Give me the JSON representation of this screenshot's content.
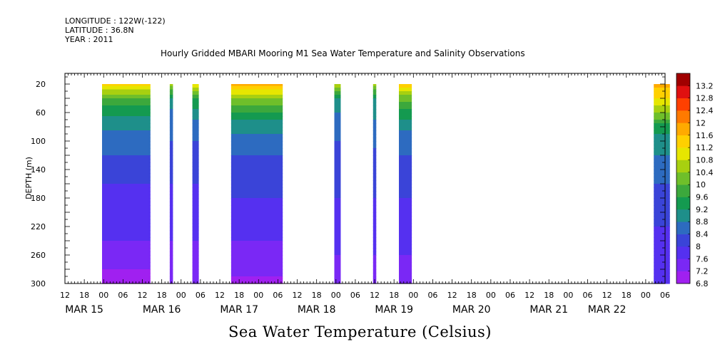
{
  "header": {
    "longitude": "LONGITUDE : 122W(-122)",
    "latitude": "LATITUDE : 36.8N",
    "year": "YEAR : 2011"
  },
  "chart_data": {
    "type": "heatmap",
    "title": "Hourly Gridded MBARI Mooring M1 Sea Water Temperature and Salinity Observations",
    "xlabel": "",
    "ylabel": "DEPTH (m)",
    "colorbar_label": "Sea Water Temperature (Celsius)",
    "xlim_hours": [
      -18,
      168
    ],
    "x_day_labels": [
      "MAR 15",
      "MAR 16",
      "MAR 17",
      "MAR 18",
      "MAR 19",
      "MAR 20",
      "MAR 21",
      "MAR 22"
    ],
    "x_day_label_hours": [
      -12,
      12,
      36,
      60,
      84,
      108,
      132,
      150
    ],
    "x_hour_ticks": [
      {
        "h": -18,
        "label": "12"
      },
      {
        "h": -12,
        "label": "18"
      },
      {
        "h": -6,
        "label": "00"
      },
      {
        "h": 0,
        "label": "06"
      },
      {
        "h": 6,
        "label": "12"
      },
      {
        "h": 12,
        "label": "18"
      },
      {
        "h": 18,
        "label": "00"
      },
      {
        "h": 24,
        "label": "06"
      },
      {
        "h": 30,
        "label": "12"
      },
      {
        "h": 36,
        "label": "18"
      },
      {
        "h": 42,
        "label": "00"
      },
      {
        "h": 48,
        "label": "06"
      },
      {
        "h": 54,
        "label": "12"
      },
      {
        "h": 60,
        "label": "18"
      },
      {
        "h": 66,
        "label": "00"
      },
      {
        "h": 72,
        "label": "06"
      },
      {
        "h": 78,
        "label": "12"
      },
      {
        "h": 84,
        "label": "18"
      },
      {
        "h": 90,
        "label": "00"
      },
      {
        "h": 96,
        "label": "06"
      },
      {
        "h": 102,
        "label": "12"
      },
      {
        "h": 108,
        "label": "18"
      },
      {
        "h": 114,
        "label": "00"
      },
      {
        "h": 120,
        "label": "06"
      },
      {
        "h": 126,
        "label": "12"
      },
      {
        "h": 132,
        "label": "18"
      },
      {
        "h": 138,
        "label": "00"
      },
      {
        "h": 144,
        "label": "06"
      },
      {
        "h": 150,
        "label": "12"
      },
      {
        "h": 156,
        "label": "18"
      },
      {
        "h": 162,
        "label": "00"
      },
      {
        "h": 168,
        "label": "06"
      }
    ],
    "y_ticks": [
      20,
      60,
      100,
      140,
      180,
      220,
      260,
      300
    ],
    "ylim": [
      0,
      300
    ],
    "colorbar_levels": [
      "6.8",
      "7.2",
      "7.6",
      "8",
      "8.4",
      "8.8",
      "9.2",
      "9.6",
      "10",
      "10.4",
      "10.8",
      "11.2",
      "11.6",
      "12",
      "12.4",
      "12.8",
      "13.2"
    ],
    "colors": [
      "#a020f0",
      "#7a28f5",
      "#5530f0",
      "#3a44d8",
      "#2d6bc0",
      "#1e8f8a",
      "#149a50",
      "#3ca83c",
      "#6fbf2a",
      "#a8d010",
      "#e6e600",
      "#ffd000",
      "#ffaa00",
      "#ff7a00",
      "#ff4000",
      "#e01010",
      "#a00000"
    ],
    "depths_m": [
      20,
      40,
      60,
      80,
      100,
      120,
      140,
      160,
      180,
      200,
      220,
      240,
      260,
      280,
      300
    ],
    "segments": [
      {
        "x0": -6.5,
        "x1": 8.5,
        "profile": [
          11.3,
          10.0,
          9.3,
          8.9,
          8.6,
          8.4,
          8.2,
          8.0,
          7.9,
          7.8,
          7.7,
          7.6,
          7.4,
          7.2,
          7.0
        ]
      },
      {
        "x0": 14.5,
        "x1": 15.5,
        "profile": [
          10.5,
          9.2,
          8.7,
          8.5,
          8.4,
          8.2,
          8.1,
          8.0,
          7.9,
          7.8,
          7.7,
          7.6,
          7.5,
          7.4,
          7.2
        ]
      },
      {
        "x0": 21.5,
        "x1": 23.5,
        "profile": [
          11.2,
          9.6,
          9.0,
          8.6,
          8.4,
          8.2,
          8.1,
          8.0,
          7.9,
          7.8,
          7.7,
          7.6,
          7.5,
          7.4,
          7.3
        ]
      },
      {
        "x0": 33.5,
        "x1": 49.5,
        "profile": [
          11.8,
          10.4,
          9.5,
          9.0,
          8.6,
          8.4,
          8.2,
          8.1,
          8.0,
          7.9,
          7.8,
          7.6,
          7.5,
          7.3,
          7.1
        ]
      },
      {
        "x0": 65.5,
        "x1": 67.5,
        "profile": [
          10.8,
          9.2,
          8.8,
          8.6,
          8.4,
          8.3,
          8.2,
          8.1,
          8.0,
          7.9,
          7.8,
          7.7,
          7.6,
          7.5,
          7.4
        ]
      },
      {
        "x0": 77.5,
        "x1": 78.5,
        "profile": [
          10.5,
          9.1,
          8.9,
          8.7,
          8.5,
          8.3,
          8.2,
          8.1,
          8.0,
          7.9,
          7.8,
          7.7,
          7.6,
          7.5,
          7.4
        ]
      },
      {
        "x0": 85.5,
        "x1": 89.5,
        "profile": [
          11.6,
          10.2,
          9.4,
          8.9,
          8.6,
          8.4,
          8.2,
          8.1,
          8.0,
          7.9,
          7.8,
          7.7,
          7.6,
          7.5,
          7.4
        ]
      },
      {
        "x0": 164.5,
        "x1": 169.5,
        "profile": [
          11.7,
          11.3,
          10.5,
          9.4,
          9.0,
          8.8,
          8.6,
          8.4,
          8.2,
          8.1,
          8.0,
          7.9,
          7.8,
          7.7,
          7.6
        ]
      }
    ],
    "grid": false,
    "legend_placement": "right"
  }
}
